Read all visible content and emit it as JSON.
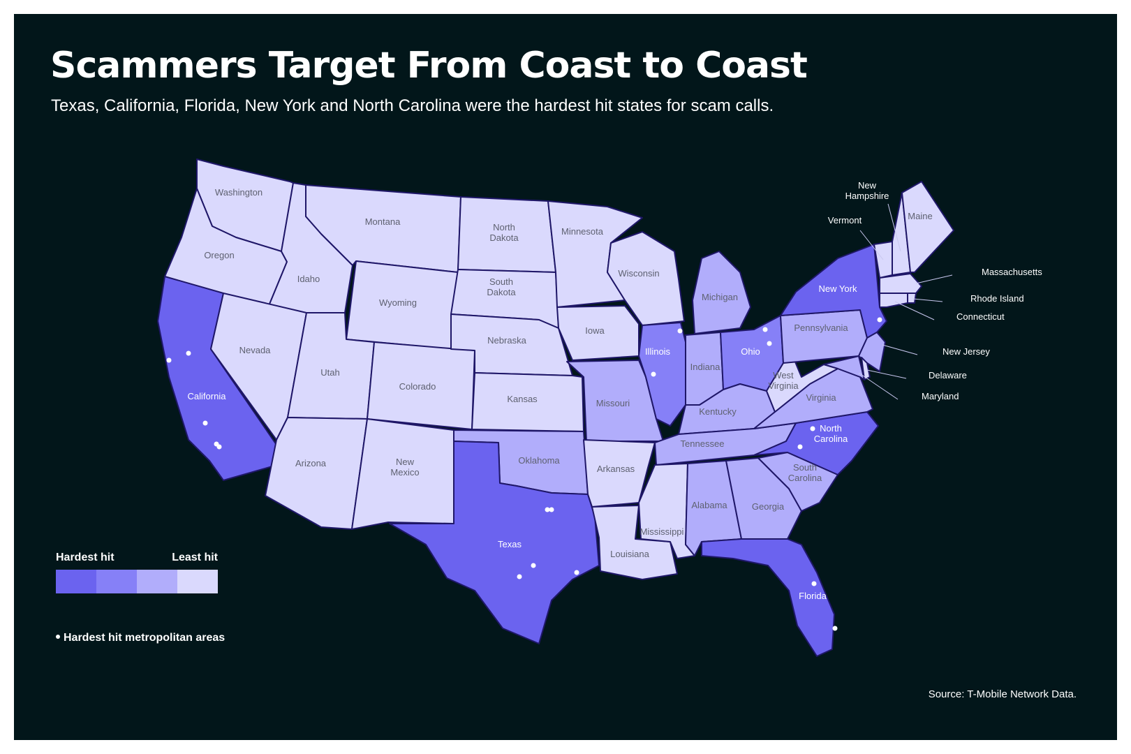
{
  "title": "Scammers Target From Coast to Coast",
  "subtitle": "Texas, California, Florida, New York and North Carolina were the hardest hit states for scam calls.",
  "source": "Source: T-Mobile Network Data.",
  "legend": {
    "high": "Hardest hit",
    "low": "Least hit",
    "metro": "Hardest hit metropolitan areas",
    "colors": [
      "#6b63ef",
      "#8680f7",
      "#b1adfb",
      "#dad9fd"
    ]
  },
  "colors": {
    "background": "#02161a",
    "border": "#1f1768",
    "dot": "#ffffff"
  },
  "states": [
    {
      "id": "WA",
      "label": "Washington",
      "tier": 4
    },
    {
      "id": "OR",
      "label": "Oregon",
      "tier": 4
    },
    {
      "id": "CA",
      "label": "California",
      "tier": 1
    },
    {
      "id": "ID",
      "label": "Idaho",
      "tier": 4
    },
    {
      "id": "NV",
      "label": "Nevada",
      "tier": 4
    },
    {
      "id": "MT",
      "label": "Montana",
      "tier": 4
    },
    {
      "id": "WY",
      "label": "Wyoming",
      "tier": 4
    },
    {
      "id": "UT",
      "label": "Utah",
      "tier": 4
    },
    {
      "id": "AZ",
      "label": "Arizona",
      "tier": 4
    },
    {
      "id": "CO",
      "label": "Colorado",
      "tier": 4
    },
    {
      "id": "NM",
      "label": "New\nMexico",
      "tier": 4
    },
    {
      "id": "ND",
      "label": "North\nDakota",
      "tier": 4
    },
    {
      "id": "SD",
      "label": "South\nDakota",
      "tier": 4
    },
    {
      "id": "NE",
      "label": "Nebraska",
      "tier": 4
    },
    {
      "id": "KS",
      "label": "Kansas",
      "tier": 4
    },
    {
      "id": "OK",
      "label": "Oklahoma",
      "tier": 3
    },
    {
      "id": "TX",
      "label": "Texas",
      "tier": 1
    },
    {
      "id": "MN",
      "label": "Minnesota",
      "tier": 4
    },
    {
      "id": "IA",
      "label": "Iowa",
      "tier": 4
    },
    {
      "id": "MO",
      "label": "Missouri",
      "tier": 3
    },
    {
      "id": "AR",
      "label": "Arkansas",
      "tier": 4
    },
    {
      "id": "LA",
      "label": "Louisiana",
      "tier": 4
    },
    {
      "id": "WI",
      "label": "Wisconsin",
      "tier": 4
    },
    {
      "id": "IL",
      "label": "Illinois",
      "tier": 2
    },
    {
      "id": "MI",
      "label": "Michigan",
      "tier": 3
    },
    {
      "id": "IN",
      "label": "Indiana",
      "tier": 3
    },
    {
      "id": "OH",
      "label": "Ohio",
      "tier": 2
    },
    {
      "id": "KY",
      "label": "Kentucky",
      "tier": 3
    },
    {
      "id": "TN",
      "label": "Tennessee",
      "tier": 3
    },
    {
      "id": "MS",
      "label": "Mississippi",
      "tier": 4
    },
    {
      "id": "AL",
      "label": "Alabama",
      "tier": 3
    },
    {
      "id": "GA",
      "label": "Georgia",
      "tier": 3
    },
    {
      "id": "FL",
      "label": "Florida",
      "tier": 1
    },
    {
      "id": "SC",
      "label": "South\nCarolina",
      "tier": 3
    },
    {
      "id": "NC",
      "label": "North\nCarolina",
      "tier": 1
    },
    {
      "id": "VA",
      "label": "Virginia",
      "tier": 3
    },
    {
      "id": "WV",
      "label": "West\nVirginia",
      "tier": 4
    },
    {
      "id": "PA",
      "label": "Pennsylvania",
      "tier": 3
    },
    {
      "id": "NY",
      "label": "New York",
      "tier": 1
    },
    {
      "id": "VT",
      "label": "Vermont",
      "tier": 4
    },
    {
      "id": "NH",
      "label": "New\nHampshire",
      "tier": 4
    },
    {
      "id": "ME",
      "label": "Maine",
      "tier": 4
    },
    {
      "id": "MA",
      "label": "Massachusetts",
      "tier": 4
    },
    {
      "id": "RI",
      "label": "Rhode Island",
      "tier": 4
    },
    {
      "id": "CT",
      "label": "Connecticut",
      "tier": 4
    },
    {
      "id": "NJ",
      "label": "New Jersey",
      "tier": 3
    },
    {
      "id": "DE",
      "label": "Delaware",
      "tier": 4
    },
    {
      "id": "MD",
      "label": "Maryland",
      "tier": 3
    }
  ],
  "metro_areas": [
    {
      "state": "CA",
      "count": 5
    },
    {
      "state": "TX",
      "count": 5
    },
    {
      "state": "FL",
      "count": 2
    },
    {
      "state": "IL",
      "count": 2
    },
    {
      "state": "OH",
      "count": 2
    },
    {
      "state": "NC",
      "count": 2
    },
    {
      "state": "NY",
      "count": 1
    }
  ]
}
